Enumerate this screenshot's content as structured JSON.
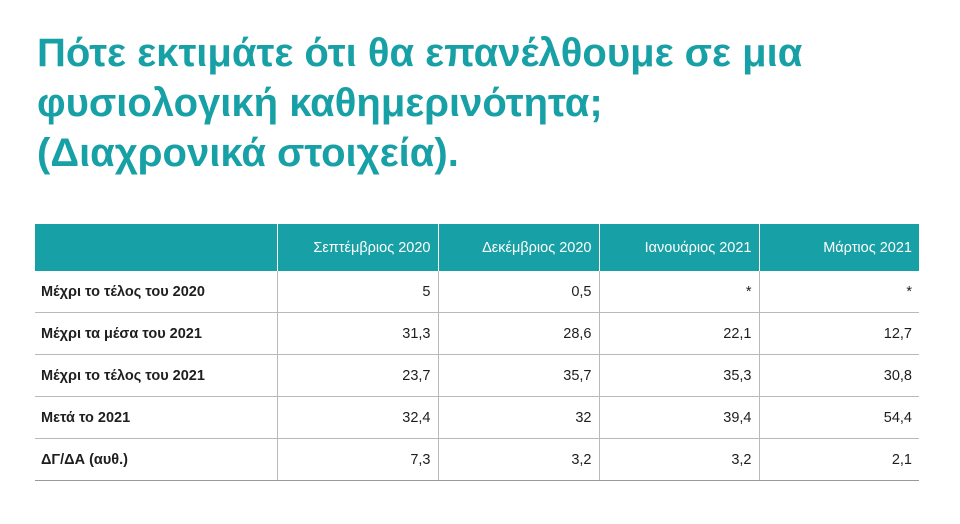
{
  "title": {
    "line1": "Πότε εκτιμάτε ότι θα επανέλθουμε σε μια",
    "line2": "φυσιολογική καθημερινότητα;",
    "line3": "(Διαχρονικά στοιχεία)."
  },
  "table": {
    "columns": [
      "",
      "Σεπτέμβριος 2020",
      "Δεκέμβριος 2020",
      "Ιανουάριος 2021",
      "Μάρτιος 2021"
    ],
    "rows": [
      {
        "label": "Μέχρι το τέλος του 2020",
        "values": [
          "5",
          "0,5",
          "*",
          "*"
        ]
      },
      {
        "label": "Μέχρι τα μέσα του 2021",
        "values": [
          "31,3",
          "28,6",
          "22,1",
          "12,7"
        ]
      },
      {
        "label": "Μέχρι το τέλος του 2021",
        "values": [
          "23,7",
          "35,7",
          "35,3",
          "30,8"
        ]
      },
      {
        "label": "Μετά το 2021",
        "values": [
          "32,4",
          "32",
          "39,4",
          "54,4"
        ]
      },
      {
        "label": "ΔΓ/ΔΑ (αυθ.)",
        "values": [
          "7,3",
          "3,2",
          "3,2",
          "2,1"
        ]
      }
    ]
  },
  "colors": {
    "accent": "#17a0a5",
    "header_text": "#ffffff",
    "body_text": "#1e1e1e",
    "grid": "#b9b9b9"
  }
}
